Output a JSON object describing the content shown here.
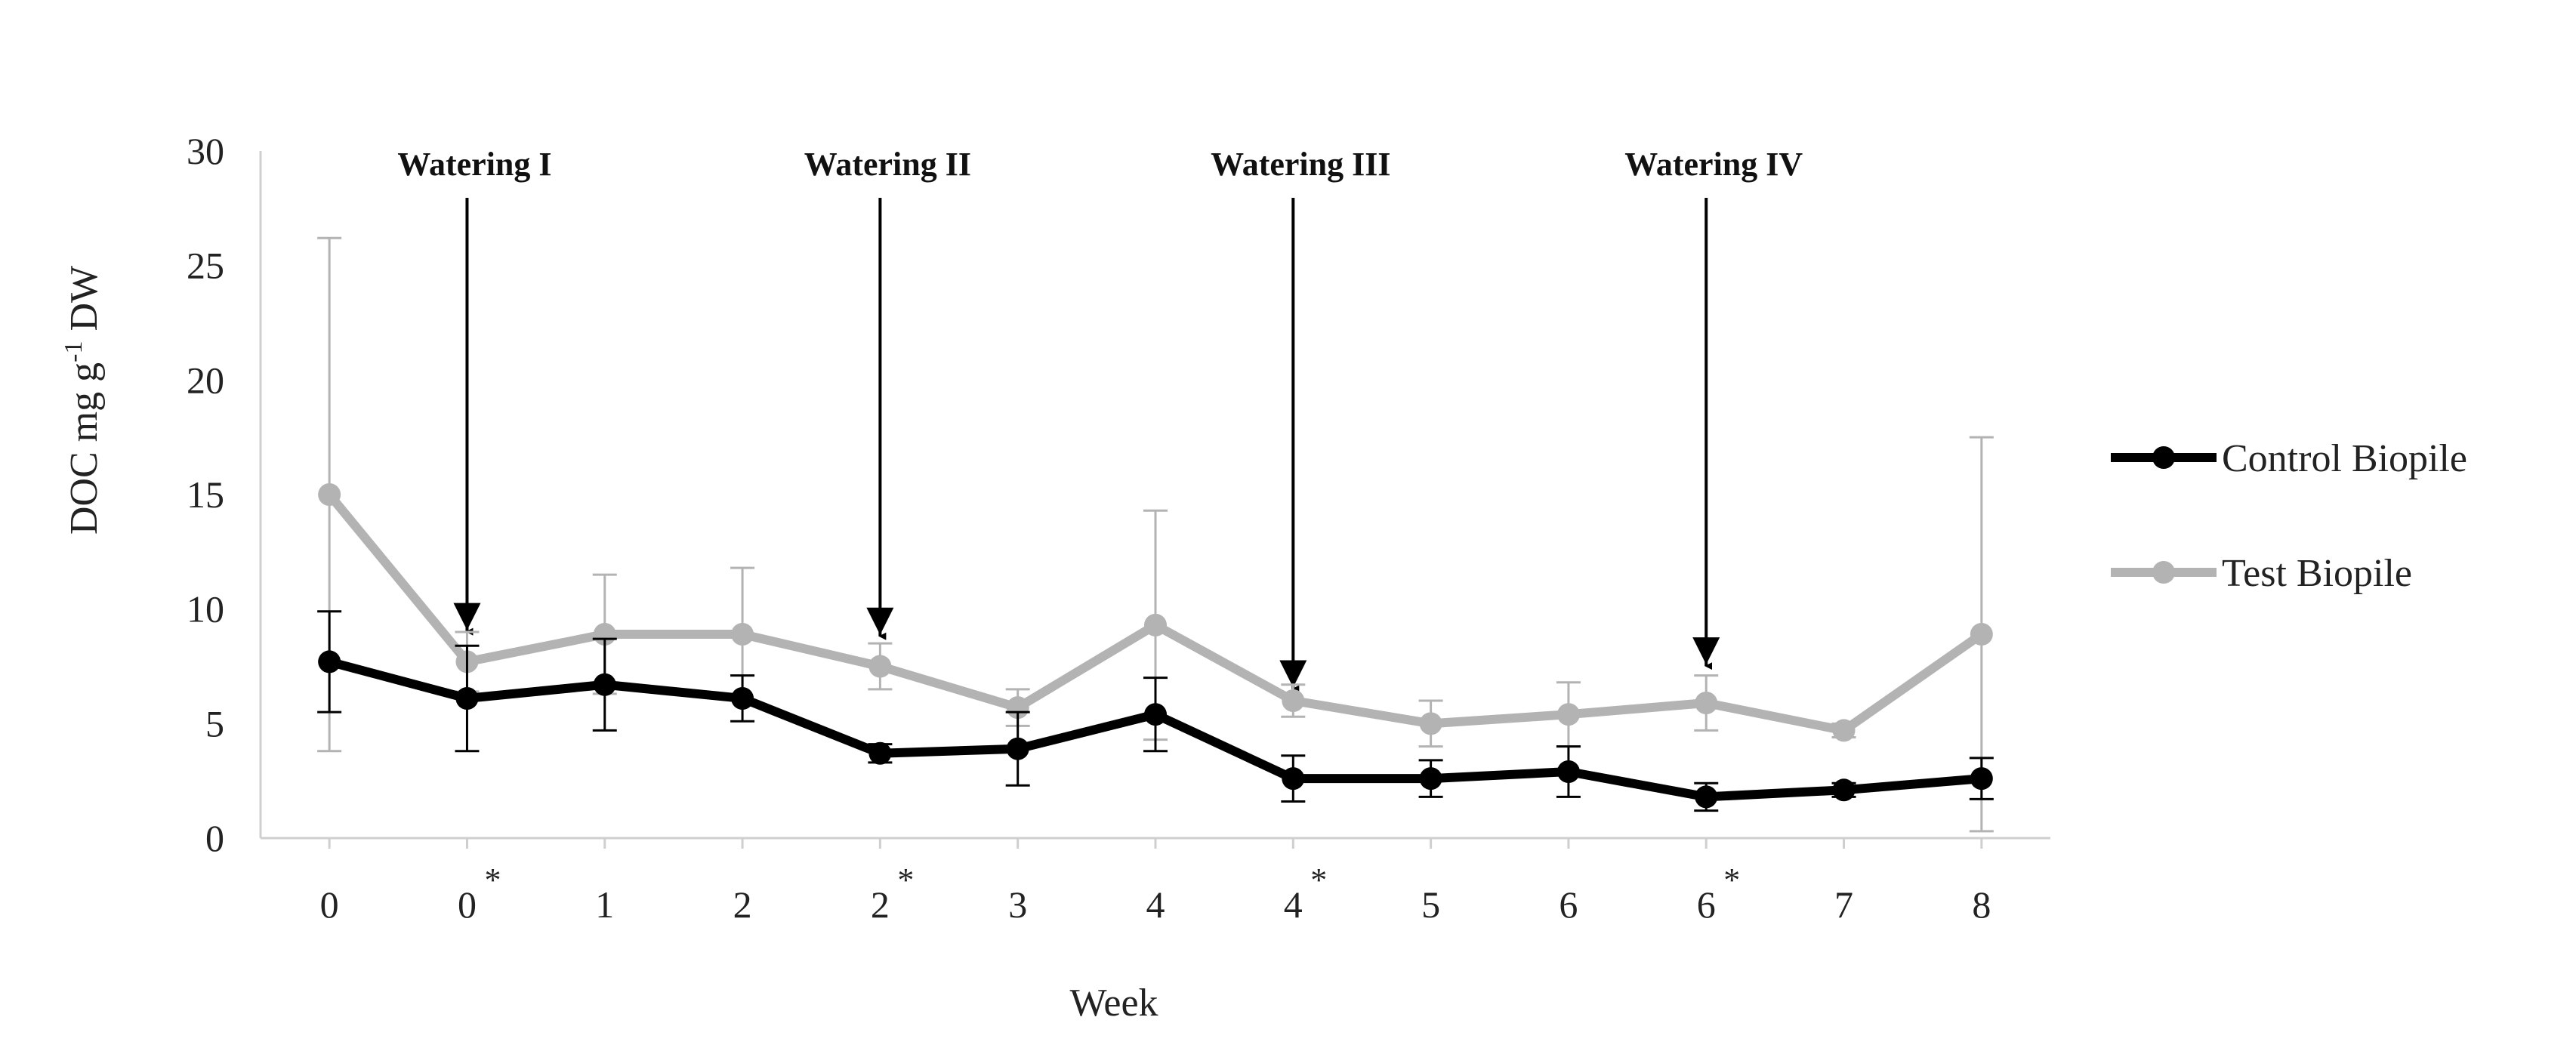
{
  "chart_data": {
    "type": "line",
    "title": "",
    "xlabel": "Week",
    "ylabel_main": "DOC mg g",
    "ylabel_sup": "-1",
    "ylabel_tail": " DW",
    "ylim": [
      0,
      30
    ],
    "yticks": [
      "0",
      "5",
      "10",
      "15",
      "20",
      "25",
      "30"
    ],
    "categories": [
      "0",
      "0",
      "1",
      "2",
      "2",
      "3",
      "4",
      "4",
      "5",
      "6",
      "6",
      "7",
      "8"
    ],
    "starred": [
      false,
      true,
      false,
      false,
      true,
      false,
      false,
      true,
      false,
      false,
      true,
      false,
      false
    ],
    "star_symbol": "*",
    "grid": false,
    "legend_position": "right",
    "series": [
      {
        "name": "Control Biopile",
        "color": "#000000",
        "values": [
          7.7,
          6.1,
          6.7,
          6.1,
          3.7,
          3.9,
          5.4,
          2.6,
          2.6,
          2.9,
          1.8,
          2.1,
          2.6
        ],
        "err": [
          2.2,
          2.3,
          2.0,
          1.0,
          0.4,
          1.6,
          1.6,
          1.0,
          0.8,
          1.1,
          0.6,
          0.3,
          0.9
        ]
      },
      {
        "name": "Test Biopile",
        "color": "#b3b3b3",
        "values": [
          15.0,
          7.7,
          8.9,
          8.9,
          7.5,
          5.7,
          9.3,
          6.0,
          5.0,
          5.4,
          5.9,
          4.7,
          8.9
        ],
        "err": [
          11.2,
          1.3,
          2.6,
          2.9,
          1.0,
          0.8,
          5.0,
          0.7,
          1.0,
          1.4,
          1.2,
          0.3,
          8.6
        ]
      }
    ],
    "annotations": [
      {
        "label": "Watering I",
        "category_index": 1,
        "arrow_to_value": 10.0
      },
      {
        "label": "Watering II",
        "category_index": 4,
        "arrow_to_value": 9.8
      },
      {
        "label": "Watering III",
        "category_index": 7,
        "arrow_to_value": 7.5
      },
      {
        "label": "Watering IV",
        "category_index": 10,
        "arrow_to_value": 8.5
      }
    ]
  }
}
